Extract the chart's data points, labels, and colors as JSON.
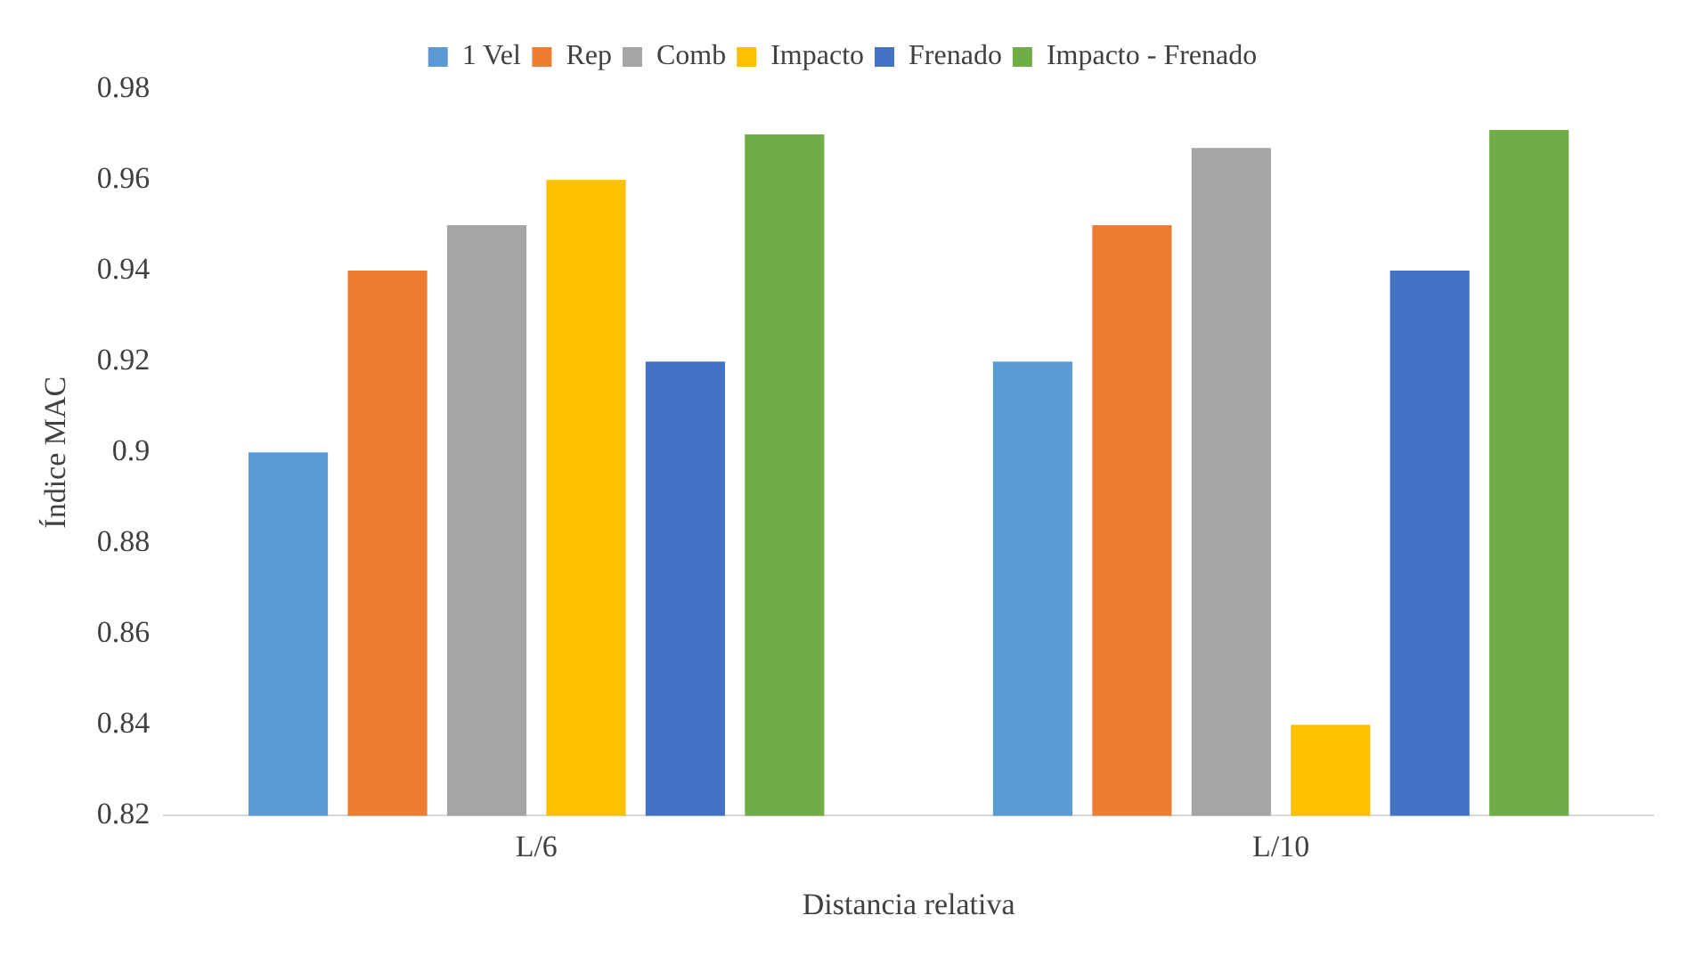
{
  "chart_data": {
    "type": "bar",
    "xlabel": "Distancia relativa",
    "ylabel": "Índice MAC",
    "categories": [
      "L/6",
      "L/10"
    ],
    "series": [
      {
        "name": "1 Vel",
        "color": "#5b9bd5",
        "values": [
          0.9,
          0.92
        ]
      },
      {
        "name": "Rep",
        "color": "#ed7d31",
        "values": [
          0.94,
          0.95
        ]
      },
      {
        "name": "Comb",
        "color": "#a5a5a5",
        "values": [
          0.95,
          0.967
        ]
      },
      {
        "name": "Impacto",
        "color": "#ffc000",
        "values": [
          0.96,
          0.84
        ]
      },
      {
        "name": "Frenado",
        "color": "#4472c4",
        "values": [
          0.92,
          0.94
        ]
      },
      {
        "name": "Impacto - Frenado",
        "color": "#70ad47",
        "values": [
          0.97,
          0.971
        ]
      }
    ],
    "ylim": [
      0.82,
      0.98
    ],
    "yticks": [
      0.82,
      0.84,
      0.86,
      0.88,
      0.9,
      0.92,
      0.94,
      0.96,
      0.98
    ],
    "grid": false,
    "legend": "top"
  }
}
